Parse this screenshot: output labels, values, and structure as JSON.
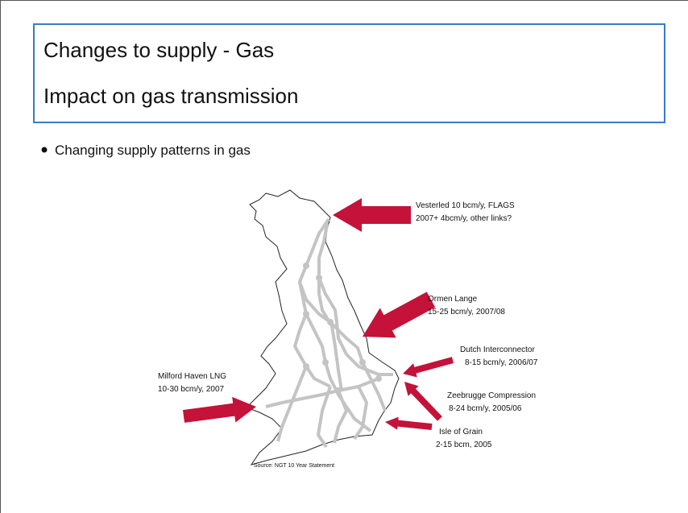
{
  "slide": {
    "title": "Changes to supply  - Gas",
    "subtitle": "Impact on gas transmission",
    "bullets": [
      "Changing supply patterns in gas"
    ],
    "map": {
      "labels": [
        {
          "lines": [
            "Vesterled 10 bcm/y, FLAGS",
            "2007+ 4bcm/y, other links?"
          ]
        },
        {
          "lines": [
            "Ormen Lange",
            "15-25 bcm/y, 2007/08"
          ]
        },
        {
          "lines": [
            "Dutch Interconnector",
            "8-15 bcm/y, 2006/07"
          ]
        },
        {
          "lines": [
            "Zeebrugge Compression",
            "8-24 bcm/y, 2005/06"
          ]
        },
        {
          "lines": [
            "Isle of Grain",
            "2-15 bcm, 2005"
          ]
        },
        {
          "lines": [
            "Milford Haven LNG",
            "10-30 bcm/y, 2007"
          ]
        }
      ],
      "source": "Source: NGT 10 Year Statement"
    }
  }
}
